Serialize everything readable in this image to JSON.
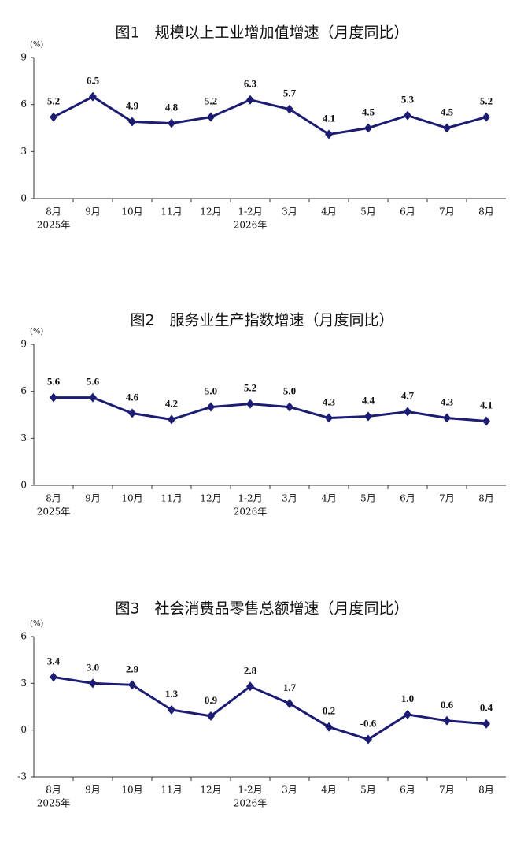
{
  "chart_data": [
    {
      "type": "line",
      "title": "图1　规模以上工业增加值增速（月度同比）",
      "y_unit": "(%)",
      "categories": [
        "8月",
        "9月",
        "10月",
        "11月",
        "12月",
        "1-2月",
        "3月",
        "4月",
        "5月",
        "6月",
        "7月",
        "8月"
      ],
      "x_sublabels": [
        "2025年",
        null,
        null,
        null,
        null,
        "2026年",
        null,
        null,
        null,
        null,
        null,
        null
      ],
      "series": [
        {
          "name": "规模以上工业增加值增速",
          "color": "#1c1c72",
          "values": [
            5.2,
            6.5,
            4.9,
            4.8,
            5.2,
            6.3,
            5.7,
            4.1,
            4.5,
            5.3,
            4.5,
            5.2
          ],
          "value_labels": [
            "5.2",
            "6.5",
            "4.9",
            "4.8",
            "5.2",
            "6.3",
            "5.7",
            "4.1",
            "4.5",
            "5.3",
            "4.5",
            "5.2"
          ]
        }
      ],
      "ylim": [
        0,
        9
      ],
      "yticks": [
        0,
        3,
        6,
        9
      ]
    },
    {
      "type": "line",
      "title": "图2　服务业生产指数增速（月度同比）",
      "y_unit": "(%)",
      "categories": [
        "8月",
        "9月",
        "10月",
        "11月",
        "12月",
        "1-2月",
        "3月",
        "4月",
        "5月",
        "6月",
        "7月",
        "8月"
      ],
      "x_sublabels": [
        "2025年",
        null,
        null,
        null,
        null,
        "2026年",
        null,
        null,
        null,
        null,
        null,
        null
      ],
      "series": [
        {
          "name": "服务业生产指数增速",
          "color": "#1c1c72",
          "values": [
            5.6,
            5.6,
            4.6,
            4.2,
            5.0,
            5.2,
            5.0,
            4.3,
            4.4,
            4.7,
            4.3,
            4.1
          ],
          "value_labels": [
            "5.6",
            "5.6",
            "4.6",
            "4.2",
            "5.0",
            "5.2",
            "5.0",
            "4.3",
            "4.4",
            "4.7",
            "4.3",
            "4.1"
          ]
        }
      ],
      "ylim": [
        0,
        9
      ],
      "yticks": [
        0,
        3,
        6,
        9
      ]
    },
    {
      "type": "line",
      "title": "图3　社会消费品零售总额增速（月度同比）",
      "y_unit": "(%)",
      "categories": [
        "8月",
        "9月",
        "10月",
        "11月",
        "12月",
        "1-2月",
        "3月",
        "4月",
        "5月",
        "6月",
        "7月",
        "8月"
      ],
      "x_sublabels": [
        "2025年",
        null,
        null,
        null,
        null,
        "2026年",
        null,
        null,
        null,
        null,
        null,
        null
      ],
      "series": [
        {
          "name": "社会消费品零售总额增速",
          "color": "#1c1c72",
          "values": [
            3.4,
            3.0,
            2.9,
            1.3,
            0.9,
            2.8,
            1.7,
            0.2,
            -0.6,
            1.0,
            0.6,
            0.4
          ],
          "value_labels": [
            "3.4",
            "3.0",
            "2.9",
            "1.3",
            "0.9",
            "2.8",
            "1.7",
            "0.2",
            "-0.6",
            "1.0",
            "0.6",
            "0.4"
          ]
        }
      ],
      "ylim": [
        -3,
        6
      ],
      "yticks": [
        -3,
        0,
        3,
        6
      ]
    }
  ]
}
